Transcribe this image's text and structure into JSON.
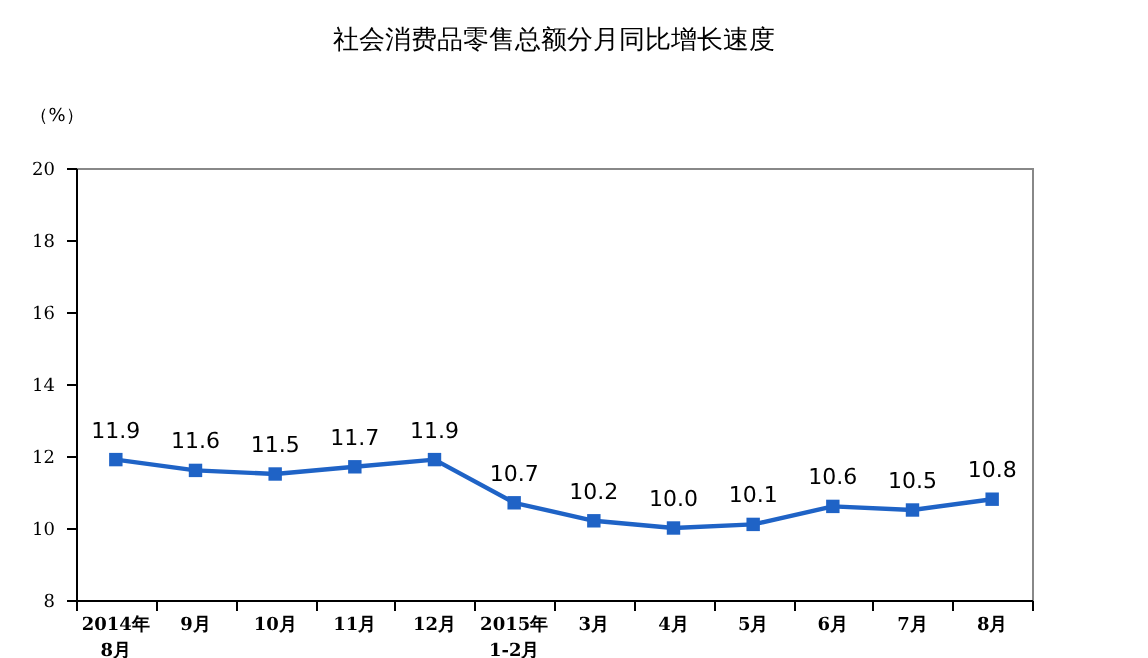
{
  "chart_data": {
    "type": "line",
    "title": "社会消费品零售总额分月同比增长速度",
    "ylabel": "（%）",
    "categories": [
      "2014年\n8月",
      "9月",
      "10月",
      "11月",
      "12月",
      "2015年\n1-2月",
      "3月",
      "4月",
      "5月",
      "6月",
      "7月",
      "8月"
    ],
    "series": [
      {
        "color": "#1f63c6",
        "values": [
          11.9,
          11.6,
          11.5,
          11.7,
          11.9,
          10.7,
          10.2,
          10.0,
          10.1,
          10.6,
          10.5,
          10.8
        ],
        "value_labels": [
          "11.9",
          "11.6",
          "11.5",
          "11.7",
          "11.9",
          "10.7",
          "10.2",
          "10.0",
          "10.1",
          "10.6",
          "10.5",
          "10.8"
        ]
      }
    ],
    "ylim": [
      8,
      20
    ],
    "yticks": [
      8,
      10,
      12,
      14,
      16,
      18,
      20
    ],
    "grid": false,
    "marker": "square",
    "line_style": "solid"
  }
}
